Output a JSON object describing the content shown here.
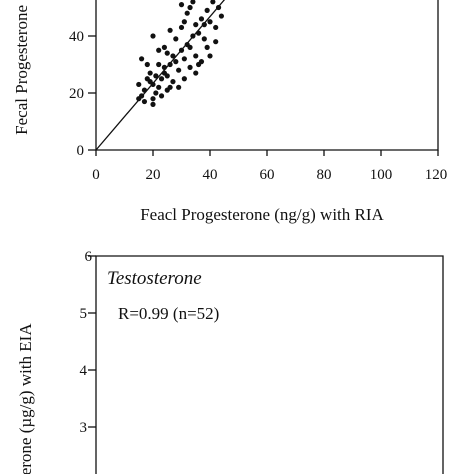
{
  "chart_data": [
    {
      "type": "scatter",
      "ylabel": "Fecal Progesterone",
      "xlabel": "Feacl Progesterone (ng/g) with RIA",
      "xlim": [
        0,
        120
      ],
      "ylim": [
        0,
        60
      ],
      "xticks": [
        "0",
        "20",
        "40",
        "60",
        "80",
        "100",
        "120"
      ],
      "yticks": [
        "0",
        "20",
        "40"
      ],
      "grid": false,
      "reference_line": {
        "x0": 0,
        "y0": 0,
        "x1": 47,
        "y1": 55
      },
      "points": [
        [
          15,
          18
        ],
        [
          16,
          19
        ],
        [
          15,
          23
        ],
        [
          17,
          21
        ],
        [
          18,
          25
        ],
        [
          19,
          24
        ],
        [
          20,
          23
        ],
        [
          20,
          18
        ],
        [
          21,
          20
        ],
        [
          22,
          22
        ],
        [
          23,
          25
        ],
        [
          24,
          27
        ],
        [
          25,
          26
        ],
        [
          19,
          27
        ],
        [
          21,
          26
        ],
        [
          22,
          30
        ],
        [
          26,
          30
        ],
        [
          27,
          33
        ],
        [
          28,
          31
        ],
        [
          25,
          34
        ],
        [
          30,
          35
        ],
        [
          32,
          37
        ],
        [
          33,
          36
        ],
        [
          34,
          40
        ],
        [
          36,
          41
        ],
        [
          38,
          44
        ],
        [
          40,
          45
        ],
        [
          42,
          43
        ],
        [
          43,
          50
        ],
        [
          41,
          52
        ],
        [
          45,
          55
        ],
        [
          47,
          58
        ],
        [
          44,
          47
        ],
        [
          39,
          36
        ],
        [
          35,
          33
        ],
        [
          31,
          32
        ],
        [
          29,
          28
        ],
        [
          33,
          29
        ],
        [
          37,
          31
        ],
        [
          40,
          33
        ],
        [
          42,
          38
        ],
        [
          38,
          39
        ],
        [
          28,
          39
        ],
        [
          30,
          43
        ],
        [
          31,
          45
        ],
        [
          32,
          48
        ],
        [
          33,
          50
        ],
        [
          34,
          52
        ],
        [
          30,
          51
        ],
        [
          32,
          54
        ],
        [
          24,
          36
        ],
        [
          26,
          42
        ],
        [
          16,
          32
        ],
        [
          20,
          40
        ],
        [
          22,
          35
        ],
        [
          18,
          30
        ],
        [
          27,
          24
        ],
        [
          29,
          22
        ],
        [
          31,
          25
        ],
        [
          35,
          27
        ],
        [
          36,
          30
        ],
        [
          23,
          19
        ],
        [
          25,
          21
        ],
        [
          17,
          17
        ],
        [
          20,
          16
        ],
        [
          35,
          44
        ],
        [
          37,
          46
        ],
        [
          39,
          49
        ],
        [
          26,
          22
        ],
        [
          24,
          29
        ]
      ]
    },
    {
      "type": "scatter",
      "title": "Testosterone",
      "annotation": "R=0.99 (n=52)",
      "ylabel": "terone (µg/g) with EIA",
      "yticks": [
        "3",
        "4",
        "5",
        "6"
      ],
      "ylim": [
        2,
        6
      ],
      "grid": false,
      "points": []
    }
  ]
}
